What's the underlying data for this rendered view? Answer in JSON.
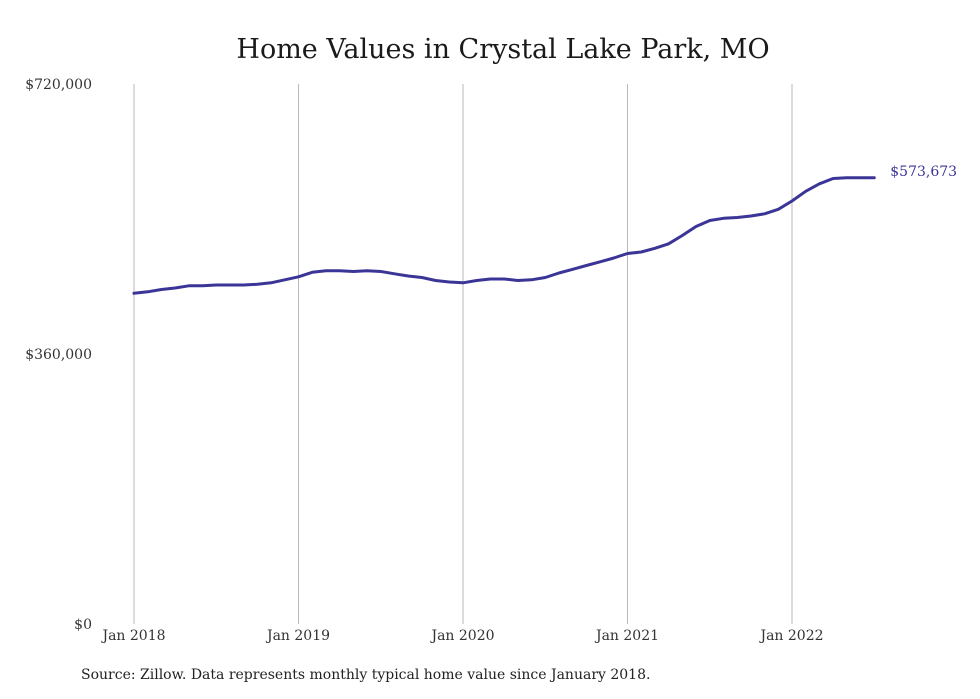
{
  "chart_data": {
    "type": "line",
    "title": "Home Values in Crystal Lake Park, MO",
    "xlabel": "",
    "ylabel": "",
    "ylim": [
      0,
      720000
    ],
    "y_ticks": [
      0,
      360000,
      720000
    ],
    "y_tick_labels": [
      "$0",
      "$360,000",
      "$720,000"
    ],
    "x_ticks": [
      "2018-01",
      "2019-01",
      "2020-01",
      "2021-01",
      "2022-01"
    ],
    "x_tick_labels": [
      "Jan 2018",
      "Jan 2019",
      "Jan 2020",
      "Jan 2021",
      "Jan 2022"
    ],
    "grid": "vertical",
    "line_color": "#3b3597",
    "series": [
      {
        "x": [
          "2018-01",
          "2018-02",
          "2018-03",
          "2018-04",
          "2018-05",
          "2018-06",
          "2018-07",
          "2018-08",
          "2018-09",
          "2018-10",
          "2018-11",
          "2018-12",
          "2019-01",
          "2019-02",
          "2019-03",
          "2019-04",
          "2019-05",
          "2019-06",
          "2019-07",
          "2019-08",
          "2019-09",
          "2019-10",
          "2019-11",
          "2019-12",
          "2020-01",
          "2020-02",
          "2020-03",
          "2020-04",
          "2020-05",
          "2020-06",
          "2020-07",
          "2020-08",
          "2020-09",
          "2020-10",
          "2020-11",
          "2020-12",
          "2021-01",
          "2021-02",
          "2021-03",
          "2021-04",
          "2021-05",
          "2021-06",
          "2021-07",
          "2021-08",
          "2021-09",
          "2021-10",
          "2021-11",
          "2021-12",
          "2022-01",
          "2022-02",
          "2022-03",
          "2022-04",
          "2022-05",
          "2022-06",
          "2022-07"
        ],
        "values": [
          441000,
          443000,
          446000,
          448000,
          451000,
          451000,
          452000,
          452000,
          452000,
          453000,
          455000,
          459000,
          463000,
          469000,
          471000,
          471000,
          470000,
          471000,
          470000,
          467000,
          464000,
          462000,
          458000,
          456000,
          455000,
          458000,
          460000,
          460000,
          458000,
          459000,
          462000,
          468000,
          473000,
          478000,
          483000,
          488000,
          494000,
          496000,
          501000,
          507000,
          518000,
          530000,
          538000,
          541000,
          542000,
          544000,
          547000,
          553000,
          564000,
          577000,
          587000,
          594000,
          595000,
          573673,
          573673
        ]
      }
    ],
    "end_label": "$573,673"
  },
  "source": "Source: Zillow. Data represents monthly typical home value since January 2018."
}
